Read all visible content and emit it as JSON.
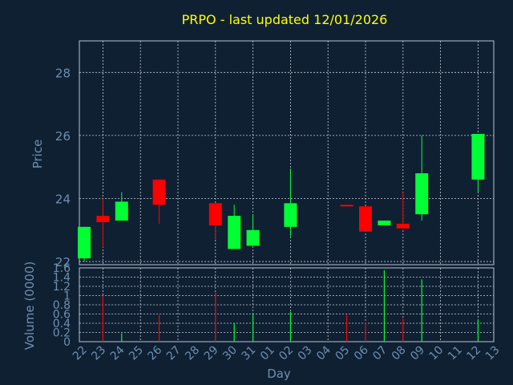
{
  "chart_data": [
    {
      "type": "candlestick",
      "title": "PRPO - last updated 12/01/2026",
      "ylabel": "Price",
      "xlabel": "Day",
      "ylim": [
        21.9,
        29.0
      ],
      "yticks": [
        22,
        24,
        26,
        28
      ],
      "grid": true,
      "up_color": "#00ff33",
      "down_color": "#ff0000",
      "days": [
        "22",
        "23",
        "24",
        "25",
        "26",
        "27",
        "28",
        "29",
        "30",
        "31",
        "01",
        "02",
        "03",
        "04",
        "05",
        "06",
        "07",
        "08",
        "09",
        "10",
        "11",
        "12",
        "13"
      ],
      "candles": [
        {
          "day": "22",
          "open": 22.1,
          "high": 23.1,
          "low": 22.0,
          "close": 23.1
        },
        {
          "day": "23",
          "open": 23.45,
          "high": 24.0,
          "low": 22.45,
          "close": 23.25
        },
        {
          "day": "24",
          "open": 23.3,
          "high": 24.2,
          "low": 23.3,
          "close": 23.9
        },
        {
          "day": "26",
          "open": 24.6,
          "high": 24.6,
          "low": 23.2,
          "close": 23.8
        },
        {
          "day": "29",
          "open": 23.85,
          "high": 23.85,
          "low": 22.7,
          "close": 23.15
        },
        {
          "day": "30",
          "open": 22.4,
          "high": 23.8,
          "low": 22.4,
          "close": 23.45
        },
        {
          "day": "31",
          "open": 22.5,
          "high": 23.5,
          "low": 22.5,
          "close": 23.0
        },
        {
          "day": "02",
          "open": 23.1,
          "high": 24.95,
          "low": 22.8,
          "close": 23.85
        },
        {
          "day": "05",
          "open": 23.8,
          "high": 23.8,
          "low": 23.75,
          "close": 23.75
        },
        {
          "day": "06",
          "open": 23.75,
          "high": 23.75,
          "low": 22.95,
          "close": 22.95
        },
        {
          "day": "07",
          "open": 23.15,
          "high": 23.3,
          "low": 23.15,
          "close": 23.3
        },
        {
          "day": "08",
          "open": 23.2,
          "high": 24.2,
          "low": 23.05,
          "close": 23.05
        },
        {
          "day": "09",
          "open": 23.5,
          "high": 26.0,
          "low": 23.3,
          "close": 24.8
        },
        {
          "day": "12",
          "open": 24.6,
          "high": 26.05,
          "low": 24.2,
          "close": 26.05
        }
      ]
    },
    {
      "type": "bar",
      "ylabel": "Volume (0000)",
      "xlabel": "Day",
      "ylim": [
        0,
        1.6
      ],
      "yticks": [
        "0",
        "0.2",
        "0.4",
        "0.6",
        "0.8",
        "1",
        "1.2",
        "1.4",
        "1.6"
      ],
      "grid": true,
      "bars": [
        {
          "day": "23",
          "value": 1.0,
          "direction": "down"
        },
        {
          "day": "24",
          "value": 0.18,
          "direction": "up"
        },
        {
          "day": "26",
          "value": 0.58,
          "direction": "down"
        },
        {
          "day": "29",
          "value": 1.07,
          "direction": "down"
        },
        {
          "day": "30",
          "value": 0.4,
          "direction": "up"
        },
        {
          "day": "31",
          "value": 0.6,
          "direction": "up"
        },
        {
          "day": "02",
          "value": 0.65,
          "direction": "up"
        },
        {
          "day": "05",
          "value": 0.58,
          "direction": "down"
        },
        {
          "day": "06",
          "value": 0.42,
          "direction": "down"
        },
        {
          "day": "07",
          "value": 1.55,
          "direction": "up"
        },
        {
          "day": "08",
          "value": 0.5,
          "direction": "down"
        },
        {
          "day": "09",
          "value": 1.35,
          "direction": "up"
        },
        {
          "day": "12",
          "value": 0.48,
          "direction": "up"
        }
      ]
    }
  ]
}
